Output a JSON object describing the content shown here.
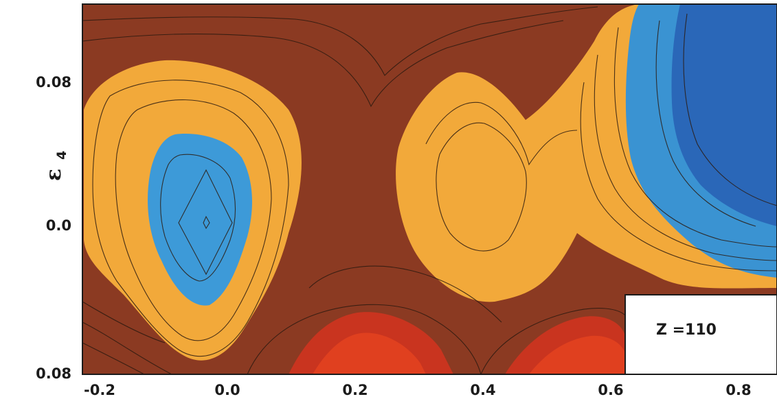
{
  "chart_data": {
    "type": "heatmap",
    "title": "",
    "xlabel": "",
    "ylabel": {
      "symbol": "ε",
      "subscript": "4"
    },
    "x_ticks": [
      "-0.2",
      "0.0",
      "0.2",
      "0.4",
      "0.6",
      "0.8"
    ],
    "x_tick_values": [
      -0.2,
      0.0,
      0.2,
      0.4,
      0.6,
      0.8
    ],
    "y_ticks": [
      "0.08",
      "0.0",
      "0.08"
    ],
    "y_tick_values": [
      0.08,
      0.0,
      -0.08
    ],
    "xlim": [
      -0.2,
      0.9
    ],
    "ylim": [
      -0.08,
      0.12
    ],
    "annotation": "Z =110",
    "levels": [
      {
        "name": "deep-minimum",
        "color": "#2a67b8"
      },
      {
        "name": "minimum",
        "color": "#3a96d4"
      },
      {
        "name": "low",
        "color": "#f2a93a"
      },
      {
        "name": "background",
        "color": "#8b3a22"
      },
      {
        "name": "high",
        "color": "#d8361f"
      }
    ],
    "regions": [
      {
        "level": "minimum",
        "center": [
          0.0,
          0.005
        ],
        "description": "oval minimum near x=0.0, y=0.0"
      },
      {
        "level": "low",
        "center": [
          -0.01,
          0.02
        ],
        "description": "orange halo around left minimum"
      },
      {
        "level": "low",
        "center": [
          0.45,
          0.02
        ],
        "description": "orange region around x=0.35-0.6"
      },
      {
        "level": "deep-minimum",
        "center": [
          0.85,
          0.05
        ],
        "description": "blue minimum at right edge"
      },
      {
        "level": "high",
        "center": [
          0.3,
          -0.075
        ],
        "description": "red high region at bottom"
      },
      {
        "level": "high",
        "center": [
          0.58,
          -0.075
        ],
        "description": "red high region at bottom right"
      }
    ]
  }
}
